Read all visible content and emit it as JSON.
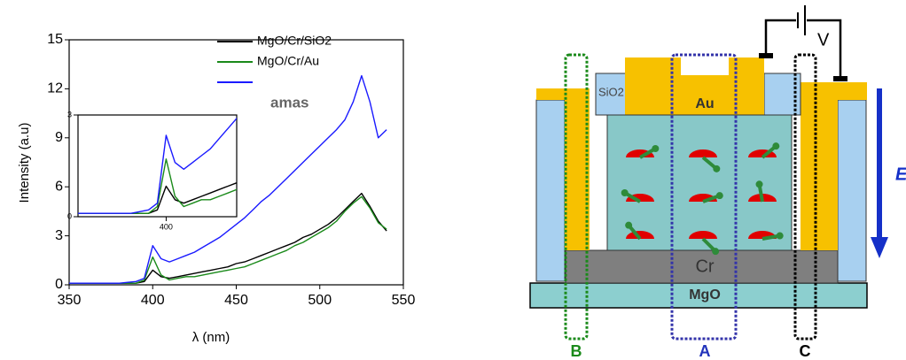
{
  "chart_data": {
    "type": "line",
    "xlabel": "λ (nm)",
    "ylabel": "Intensity (a.u)",
    "xlim": [
      350,
      550
    ],
    "xticks": [
      350,
      400,
      450,
      500,
      550
    ],
    "ylim": [
      0,
      15
    ],
    "yticks": [
      0,
      3,
      6,
      9,
      12,
      15
    ],
    "x": [
      350,
      355,
      360,
      365,
      370,
      375,
      380,
      385,
      390,
      395,
      400,
      405,
      410,
      415,
      420,
      425,
      430,
      435,
      440,
      445,
      450,
      455,
      460,
      465,
      470,
      475,
      480,
      485,
      490,
      495,
      500,
      505,
      510,
      515,
      520,
      525,
      530,
      535,
      540
    ],
    "series": [
      {
        "name": "MgO/Cr/SiO2",
        "color": "#000000",
        "values": [
          0.1,
          0.1,
          0.1,
          0.1,
          0.1,
          0.1,
          0.1,
          0.1,
          0.1,
          0.2,
          0.9,
          0.5,
          0.4,
          0.5,
          0.6,
          0.7,
          0.8,
          0.9,
          1.0,
          1.1,
          1.3,
          1.4,
          1.6,
          1.8,
          2.0,
          2.2,
          2.4,
          2.6,
          2.9,
          3.1,
          3.4,
          3.7,
          4.1,
          4.6,
          5.1,
          5.6,
          4.8,
          3.9,
          3.3
        ]
      },
      {
        "name": "MgO/Cr/Au",
        "color": "#1a8a1a",
        "values": [
          0.1,
          0.1,
          0.1,
          0.1,
          0.1,
          0.1,
          0.1,
          0.1,
          0.1,
          0.3,
          1.7,
          0.6,
          0.3,
          0.4,
          0.5,
          0.5,
          0.6,
          0.7,
          0.8,
          0.9,
          1.0,
          1.1,
          1.3,
          1.5,
          1.7,
          1.9,
          2.1,
          2.4,
          2.6,
          2.9,
          3.2,
          3.5,
          3.9,
          4.5,
          5.0,
          5.4,
          4.7,
          3.8,
          3.4
        ]
      },
      {
        "name": "amas",
        "color": "#1a1aff",
        "values": [
          0.1,
          0.1,
          0.1,
          0.1,
          0.1,
          0.1,
          0.1,
          0.15,
          0.2,
          0.4,
          2.4,
          1.6,
          1.4,
          1.6,
          1.8,
          2.0,
          2.3,
          2.6,
          2.9,
          3.3,
          3.7,
          4.1,
          4.6,
          5.1,
          5.5,
          6.0,
          6.5,
          7.0,
          7.5,
          8.0,
          8.5,
          9.0,
          9.5,
          10.1,
          11.2,
          12.8,
          11.2,
          9.0,
          9.5
        ]
      }
    ],
    "inset": {
      "xlim": [
        350,
        440
      ],
      "xticks": [
        400
      ],
      "ylim": [
        0,
        3
      ],
      "yticks": [
        0,
        3
      ]
    }
  },
  "diagram": {
    "voltage": "V",
    "layers": [
      "SiO2",
      "Au",
      "Cr",
      "MgO"
    ],
    "regions": [
      "B",
      "A",
      "C"
    ],
    "field": "E"
  }
}
